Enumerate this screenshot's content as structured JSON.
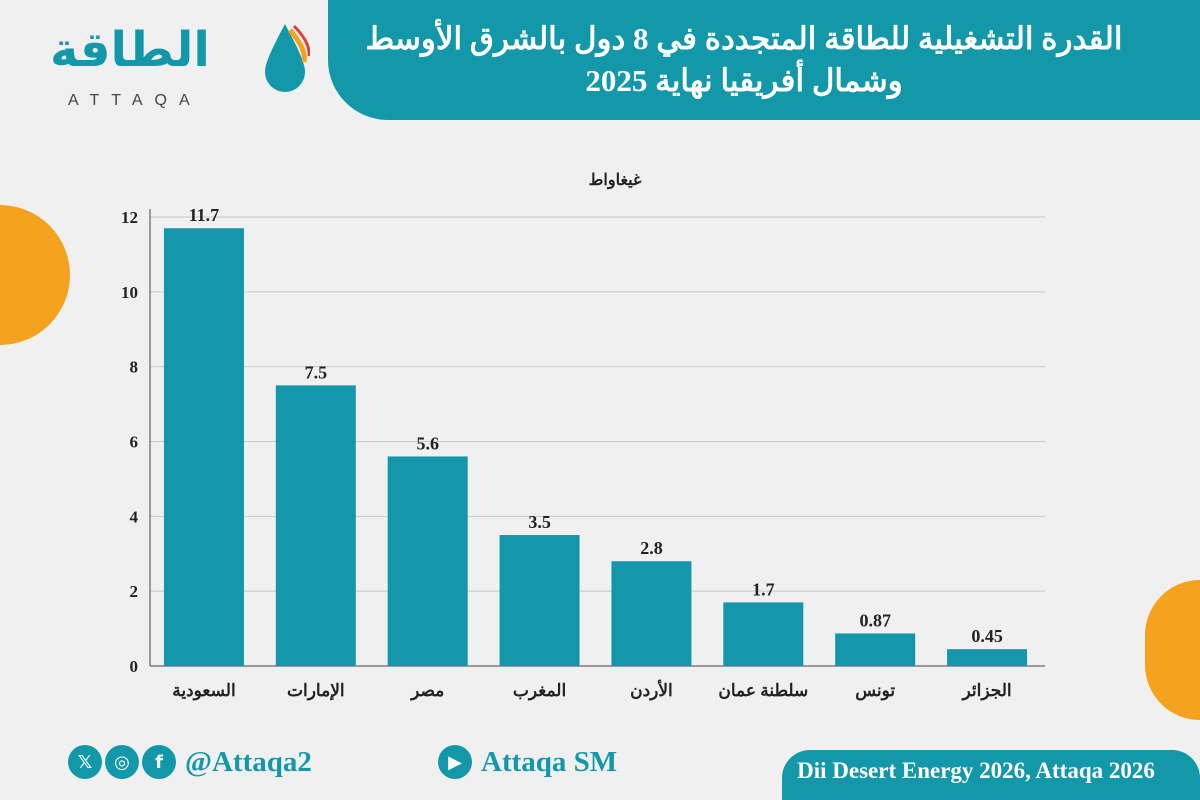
{
  "header": {
    "title": "القدرة التشغيلية للطاقة المتجددة في 8 دول بالشرق الأوسط وشمال أفريقيا نهاية 2025"
  },
  "logo": {
    "arabic": "الطاقة",
    "english": "ATTAQA"
  },
  "footer": {
    "source": "Dii Desert Energy 2026, Attaqa 2026",
    "handle": "@Attaqa2",
    "youtube": "Attaqa SM",
    "icons": [
      "x-icon",
      "instagram-icon",
      "facebook-icon",
      "youtube-icon"
    ]
  },
  "colors": {
    "accent": "#1398aa",
    "bar": "#1497ab",
    "orange": "#f5a21f"
  },
  "chart_data": {
    "type": "bar",
    "ylabel": "غيغاواط",
    "categories": [
      "السعودية",
      "الإمارات",
      "مصر",
      "المغرب",
      "الأردن",
      "سلطنة عمان",
      "تونس",
      "الجزائر"
    ],
    "values": [
      11.7,
      7.5,
      5.6,
      3.5,
      2.8,
      1.7,
      0.87,
      0.45
    ],
    "labels": [
      "11.7",
      "7.5",
      "5.6",
      "3.5",
      "2.8",
      "1.7",
      "0.87",
      "0.45"
    ],
    "yticks": [
      0,
      2,
      4,
      6,
      8,
      10,
      12
    ],
    "ylim": [
      0,
      12
    ],
    "grid": true
  }
}
